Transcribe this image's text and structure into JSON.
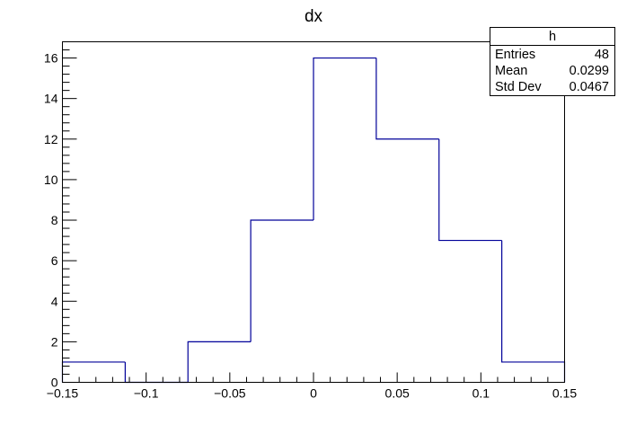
{
  "chart_data": {
    "type": "bar",
    "title": "dx",
    "xlabel": "",
    "ylabel": "",
    "xlim": [
      -0.15,
      0.15
    ],
    "ylim": [
      0,
      16.8
    ],
    "bin_edges": [
      -0.15,
      -0.1125,
      -0.075,
      -0.0375,
      0,
      0.0375,
      0.075,
      0.1125,
      0.15
    ],
    "values": [
      1,
      0,
      2,
      8,
      16,
      12,
      7,
      1
    ],
    "x_ticks": [
      {
        "value": -0.15,
        "label": "−0.15"
      },
      {
        "value": -0.1,
        "label": "−0.1"
      },
      {
        "value": -0.05,
        "label": "−0.05"
      },
      {
        "value": 0,
        "label": "0"
      },
      {
        "value": 0.05,
        "label": "0.05"
      },
      {
        "value": 0.1,
        "label": "0.1"
      },
      {
        "value": 0.15,
        "label": "0.15"
      }
    ],
    "y_ticks": [
      {
        "value": 0,
        "label": "0"
      },
      {
        "value": 2,
        "label": "2"
      },
      {
        "value": 4,
        "label": "4"
      },
      {
        "value": 6,
        "label": "6"
      },
      {
        "value": 8,
        "label": "8"
      },
      {
        "value": 10,
        "label": "10"
      },
      {
        "value": 12,
        "label": "12"
      },
      {
        "value": 14,
        "label": "14"
      },
      {
        "value": 16,
        "label": "16"
      }
    ],
    "line_color": "#000099",
    "grid": false,
    "legend": "none",
    "stats_box": {
      "name": "h",
      "rows": [
        {
          "label": "Entries",
          "value": "48"
        },
        {
          "label": "Mean",
          "value": "0.0299"
        },
        {
          "label": "Std Dev",
          "value": "0.0467"
        }
      ]
    }
  }
}
